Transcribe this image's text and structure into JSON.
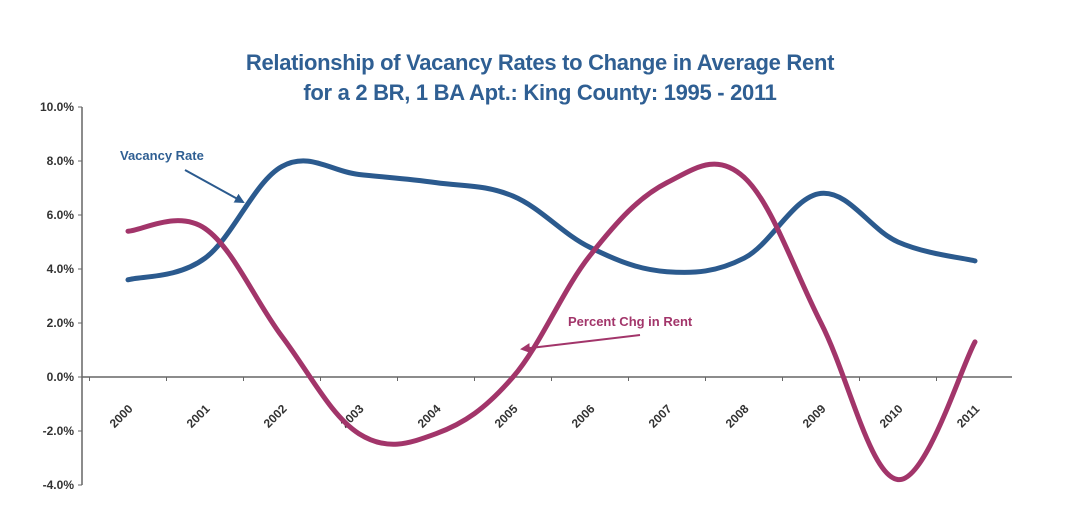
{
  "chart_data": {
    "type": "line",
    "title_line1": "Relationship of Vacancy  Rates to Change in Average Rent",
    "title_line2": "for a 2 BR, 1 BA Apt.:   King County:  1995 - 2011",
    "categories": [
      "2000",
      "2001",
      "2002",
      "2003",
      "2004",
      "2005",
      "2006",
      "2007",
      "2008",
      "2009",
      "2010",
      "2011"
    ],
    "ylim": [
      -4,
      10
    ],
    "yticks": [
      "10.0%",
      "8.0%",
      "6.0%",
      "4.0%",
      "2.0%",
      "0.0%",
      "-2.0%",
      "-4.0%"
    ],
    "series": [
      {
        "name": "Vacancy Rate",
        "color": "#2b5a8e",
        "values": [
          3.6,
          4.4,
          7.8,
          7.5,
          7.2,
          6.7,
          4.8,
          3.9,
          4.4,
          6.8,
          5.0,
          4.3
        ]
      },
      {
        "name": "Percent Chg in Rent",
        "color": "#a2356a",
        "values": [
          5.4,
          5.5,
          1.5,
          -2.1,
          -2.1,
          0.0,
          4.5,
          7.2,
          7.4,
          2.0,
          -3.8,
          1.3
        ]
      }
    ],
    "annotations": [
      {
        "text": "Vacancy Rate",
        "series": 0
      },
      {
        "text": "Percent Chg in Rent",
        "series": 1
      }
    ],
    "grid": false,
    "legend": "none"
  }
}
